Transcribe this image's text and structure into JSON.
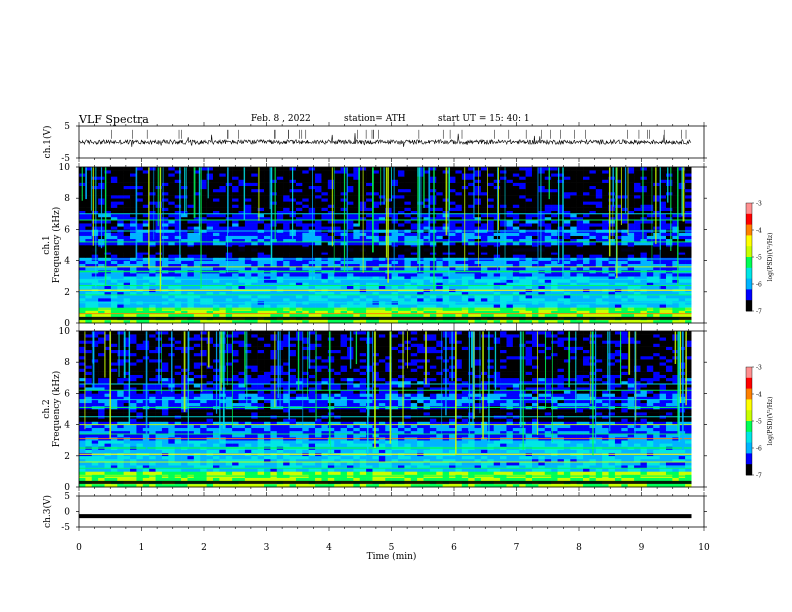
{
  "header": {
    "title": "VLF  Spectra",
    "date": "Feb. 8  , 2022",
    "station": "station= ATH",
    "start": "start  UT  =   15: 40: 1"
  },
  "chart_data": [
    {
      "type": "line",
      "panel": "ch1-waveform",
      "ylabel": "ch.1(V)",
      "ylim": [
        -5,
        5
      ],
      "yticks": [
        "5",
        "-5"
      ],
      "xlim": [
        0,
        10
      ],
      "data_end_min": 9.8,
      "level": 0,
      "color": "#000000"
    },
    {
      "type": "heatmap",
      "panel": "ch1-spectrogram",
      "ylabel": "ch.1\nFrequency  (kHz)",
      "ylim": [
        0,
        10
      ],
      "yticks": [
        "0",
        "2",
        "4",
        "6",
        "8",
        "10"
      ],
      "xlim": [
        0,
        10
      ],
      "data_end_min": 9.8,
      "colorbar": {
        "label": "log(PSD)(V²/Hz)",
        "ticks": [
          "-3",
          "-4",
          "-5",
          "-6",
          "-7"
        ],
        "range": [
          -7,
          -3
        ]
      }
    },
    {
      "type": "heatmap",
      "panel": "ch2-spectrogram",
      "ylabel": "ch.2\nFrequency  (kHz)",
      "ylim": [
        0,
        10
      ],
      "yticks": [
        "0",
        "2",
        "4",
        "6",
        "8",
        "10"
      ],
      "xlim": [
        0,
        10
      ],
      "data_end_min": 9.8,
      "colorbar": {
        "label": "log(PSD)(V²/Hz)",
        "ticks": [
          "-3",
          "-4",
          "-5",
          "-6",
          "-7"
        ],
        "range": [
          -7,
          -3
        ]
      }
    },
    {
      "type": "line",
      "panel": "ch3-waveform",
      "ylabel": "ch.3(V)",
      "ylim": [
        -5,
        5
      ],
      "yticks": [
        "5",
        "0",
        "-5"
      ],
      "xlim": [
        0,
        10
      ],
      "data_end_min": 9.8,
      "level": -1.5,
      "color": "#000000"
    }
  ],
  "xaxis": {
    "label": "Time  (min)",
    "ticks": [
      "0",
      "1",
      "2",
      "3",
      "4",
      "5",
      "6",
      "7",
      "8",
      "9",
      "10"
    ]
  },
  "colors": {
    "colormap": [
      "#000000",
      "#0000ff",
      "#00b4ff",
      "#00e6e6",
      "#00ff55",
      "#c8ff00",
      "#ffff00",
      "#ff8000",
      "#ff0000",
      "#ff9090",
      "#ffffff"
    ]
  }
}
